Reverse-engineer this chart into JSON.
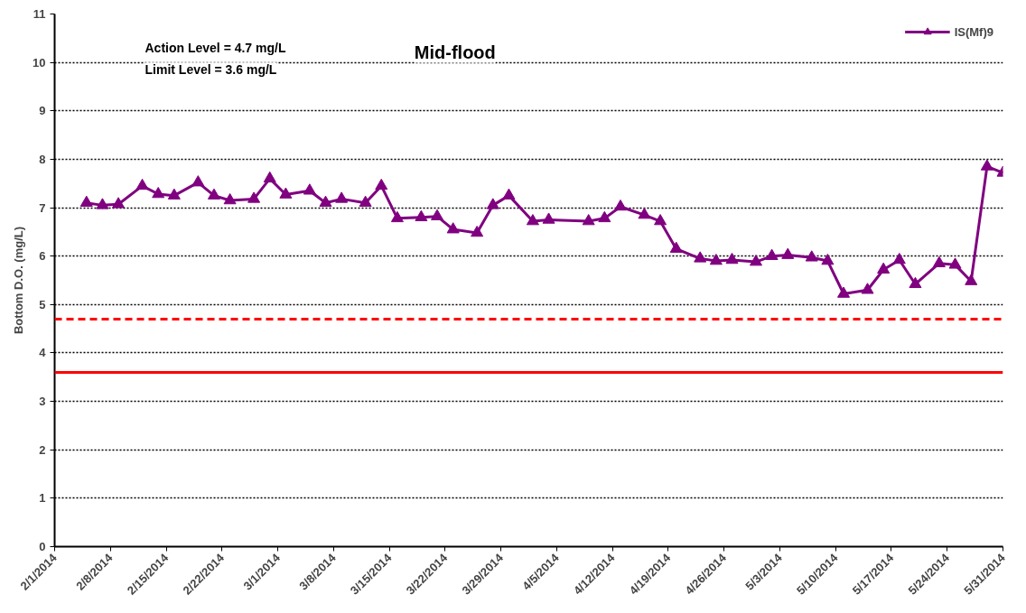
{
  "chart_data": {
    "type": "line",
    "title": "Mid-flood",
    "ylabel": "Bottom D.O. (mg/L)",
    "x": [
      "2014-02-05",
      "2014-02-07",
      "2014-02-09",
      "2014-02-12",
      "2014-02-14",
      "2014-02-16",
      "2014-02-19",
      "2014-02-21",
      "2014-02-23",
      "2014-02-26",
      "2014-02-28",
      "2014-03-02",
      "2014-03-05",
      "2014-03-07",
      "2014-03-09",
      "2014-03-12",
      "2014-03-14",
      "2014-03-16",
      "2014-03-19",
      "2014-03-21",
      "2014-03-23",
      "2014-03-26",
      "2014-03-28",
      "2014-03-30",
      "2014-04-02",
      "2014-04-04",
      "2014-04-09",
      "2014-04-11",
      "2014-04-13",
      "2014-04-16",
      "2014-04-18",
      "2014-04-20",
      "2014-04-23",
      "2014-04-25",
      "2014-04-27",
      "2014-04-30",
      "2014-05-02",
      "2014-05-04",
      "2014-05-07",
      "2014-05-09",
      "2014-05-11",
      "2014-05-14",
      "2014-05-16",
      "2014-05-18",
      "2014-05-20",
      "2014-05-23",
      "2014-05-25",
      "2014-05-27",
      "2014-05-29",
      "2014-05-31"
    ],
    "series": [
      {
        "name": "IS(Mf)9",
        "color": "#800080",
        "values": [
          7.1,
          7.05,
          7.07,
          7.45,
          7.28,
          7.25,
          7.52,
          7.25,
          7.15,
          7.18,
          7.6,
          7.27,
          7.35,
          7.1,
          7.18,
          7.1,
          7.45,
          6.78,
          6.8,
          6.82,
          6.55,
          6.48,
          7.05,
          7.25,
          6.72,
          6.75,
          6.72,
          6.78,
          7.02,
          6.85,
          6.72,
          6.15,
          5.95,
          5.9,
          5.92,
          5.88,
          6.0,
          6.02,
          5.97,
          5.9,
          5.22,
          5.3,
          5.72,
          5.92,
          5.42,
          5.85,
          5.82,
          5.48,
          7.85,
          7.72
        ]
      }
    ],
    "xlim": [
      "2014-02-01",
      "2014-05-31"
    ],
    "xticks": [
      {
        "value": "2014-02-01",
        "label": "2/1/2014"
      },
      {
        "value": "2014-02-08",
        "label": "2/8/2014"
      },
      {
        "value": "2014-02-15",
        "label": "2/15/2014"
      },
      {
        "value": "2014-02-22",
        "label": "2/22/2014"
      },
      {
        "value": "2014-03-01",
        "label": "3/1/2014"
      },
      {
        "value": "2014-03-08",
        "label": "3/8/2014"
      },
      {
        "value": "2014-03-15",
        "label": "3/15/2014"
      },
      {
        "value": "2014-03-22",
        "label": "3/22/2014"
      },
      {
        "value": "2014-03-29",
        "label": "3/29/2014"
      },
      {
        "value": "2014-04-05",
        "label": "4/5/2014"
      },
      {
        "value": "2014-04-12",
        "label": "4/12/2014"
      },
      {
        "value": "2014-04-19",
        "label": "4/19/2014"
      },
      {
        "value": "2014-04-26",
        "label": "4/26/2014"
      },
      {
        "value": "2014-05-03",
        "label": "5/3/2014"
      },
      {
        "value": "2014-05-10",
        "label": "5/10/2014"
      },
      {
        "value": "2014-05-17",
        "label": "5/17/2014"
      },
      {
        "value": "2014-05-24",
        "label": "5/24/2014"
      },
      {
        "value": "2014-05-31",
        "label": "5/31/2014"
      }
    ],
    "ylim": [
      0,
      11
    ],
    "yticks": [
      0,
      1,
      2,
      3,
      4,
      5,
      6,
      7,
      8,
      9,
      10,
      11
    ],
    "ref_lines": [
      {
        "axis": "y",
        "value": 4.7,
        "color": "#ff0000",
        "line_style": "dashed"
      },
      {
        "axis": "y",
        "value": 3.6,
        "color": "#ff0000",
        "line_style": "solid"
      }
    ],
    "annotations": [
      "Action Level = 4.7 mg/L",
      "Limit Level = 3.6 mg/L"
    ],
    "grid": "y",
    "legend": "top right",
    "marker": "triangle",
    "line_style": "solid"
  }
}
